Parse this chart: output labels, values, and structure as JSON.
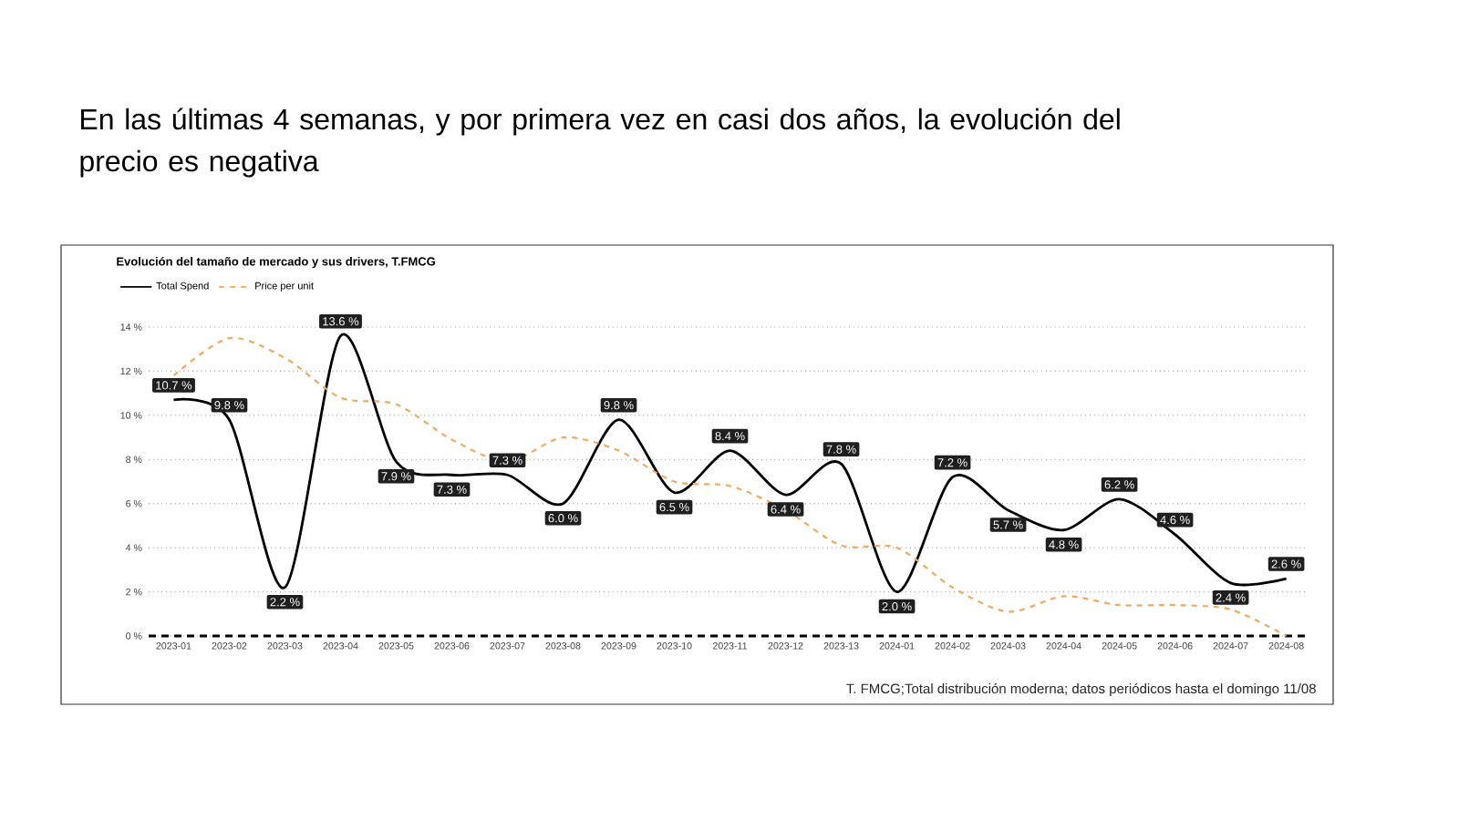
{
  "chart_data": {
    "type": "line",
    "title": "En las últimas 4 semanas, y por primera vez en casi dos años, la evolución del precio es negativa",
    "subtitle": "Evolución del tamaño de mercado y sus drivers, T.FMCG",
    "categories": [
      "2023-01",
      "2023-02",
      "2023-03",
      "2023-04",
      "2023-05",
      "2023-06",
      "2023-07",
      "2023-08",
      "2023-09",
      "2023-10",
      "2023-11",
      "2023-12",
      "2023-13",
      "2024-01",
      "2024-02",
      "2024-03",
      "2024-04",
      "2024-05",
      "2024-06",
      "2024-07",
      "2024-08"
    ],
    "series": [
      {
        "name": "Total Spend",
        "color": "#000000",
        "line_style": "solid",
        "values": [
          10.7,
          9.8,
          2.2,
          13.6,
          7.9,
          7.3,
          7.3,
          6.0,
          9.8,
          6.5,
          8.4,
          6.4,
          7.8,
          2.0,
          7.2,
          5.7,
          4.8,
          6.2,
          4.6,
          2.4,
          2.6
        ],
        "value_labels": [
          "10.7 %",
          "9.8 %",
          "2.2 %",
          "13.6 %",
          "7.9 %",
          "7.3 %",
          "7.3 %",
          "6.0 %",
          "9.8 %",
          "6.5 %",
          "8.4 %",
          "6.4 %",
          "7.8 %",
          "2.0 %",
          "7.2 %",
          "5.7 %",
          "4.8 %",
          "6.2 %",
          "4.6 %",
          "2.4 %",
          "2.6 %"
        ]
      },
      {
        "name": "Price per unit",
        "color": "#eeaa5f",
        "line_style": "dashed",
        "values": [
          11.8,
          13.5,
          12.6,
          10.8,
          10.5,
          8.9,
          7.9,
          9.0,
          8.4,
          7.0,
          6.8,
          5.7,
          4.1,
          4.0,
          2.2,
          1.1,
          1.8,
          1.4,
          1.4,
          1.2,
          0.0
        ]
      }
    ],
    "ylim": [
      0,
      14
    ],
    "yticks": [
      {
        "value": 0,
        "label": "0 %"
      },
      {
        "value": 2,
        "label": "2 %"
      },
      {
        "value": 4,
        "label": "4 %"
      },
      {
        "value": 6,
        "label": "6 %"
      },
      {
        "value": 8,
        "label": "8 %"
      },
      {
        "value": 10,
        "label": "10 %"
      },
      {
        "value": 12,
        "label": "12 %"
      },
      {
        "value": 14,
        "label": "14 %"
      }
    ],
    "grid": "y",
    "legend": "top left",
    "ref_lines": [
      {
        "axis": "y",
        "value": 0,
        "color": "#000000",
        "line_style": "dashed"
      }
    ],
    "annotations": [
      "T. FMCG;Total distribución moderna; datos periódicos hasta el domingo 11/08"
    ]
  }
}
